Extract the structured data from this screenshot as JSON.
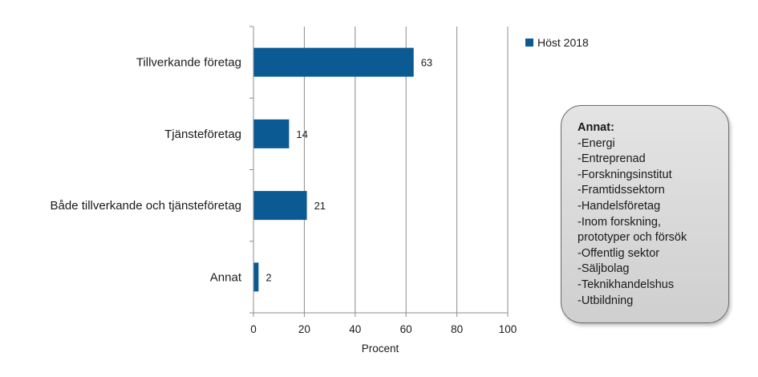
{
  "chart_data": {
    "type": "bar",
    "orientation": "horizontal",
    "categories": [
      "Tillverkande företag",
      "Tjänsteföretag",
      "Både tillverkande och tjänsteföretag",
      "Annat"
    ],
    "series": [
      {
        "name": "Höst 2018",
        "values": [
          63,
          14,
          21,
          2
        ],
        "color": "#0c5a93"
      }
    ],
    "data_labels": [
      "63",
      "14",
      "21",
      "2"
    ],
    "xlabel": "Procent",
    "ylabel": "",
    "xlim": [
      0,
      100
    ],
    "x_ticks": [
      "0",
      "20",
      "40",
      "60",
      "80",
      "100"
    ],
    "grid": "vertical",
    "legend_position": "top-right"
  },
  "note": {
    "title": "Annat:",
    "items": [
      "-Energi",
      "-Entreprenad",
      "-Forskningsinstitut",
      "-Framtidssektorn",
      "-Handelsföretag",
      "-Inom forskning,",
      "prototyper och försök",
      "-Offentlig sektor",
      "-Säljbolag",
      "-Teknikhandelshus",
      "-Utbildning"
    ]
  },
  "colors": {
    "bar": "#0c5a93",
    "grid": "#8c8c8c",
    "axis": "#8c8c8c"
  }
}
